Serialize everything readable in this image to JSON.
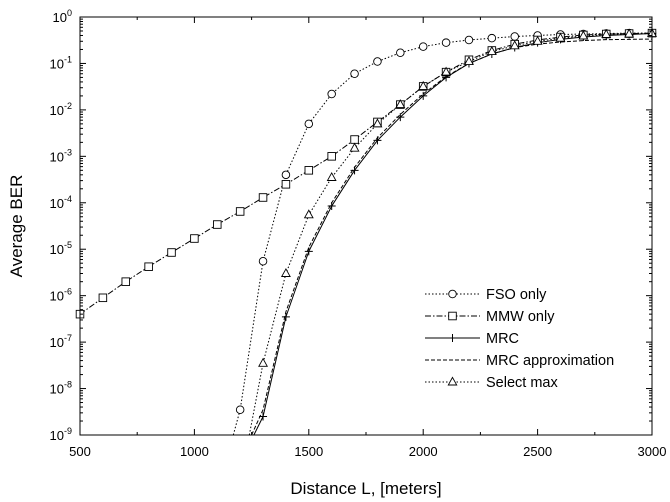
{
  "chart_data": {
    "type": "line",
    "xlabel": "Distance L, [meters]",
    "ylabel": "Average BER",
    "xlim": [
      500,
      3000
    ],
    "ylim": [
      1e-09,
      1
    ],
    "yscale": "log",
    "grid": false,
    "legend_position": "lower-right",
    "x_ticks": [
      {
        "value": 500,
        "label": "500"
      },
      {
        "value": 1000,
        "label": "1000"
      },
      {
        "value": 1500,
        "label": "1500"
      },
      {
        "value": 2000,
        "label": "2000"
      },
      {
        "value": 2500,
        "label": "2500"
      },
      {
        "value": 3000,
        "label": "3000"
      }
    ],
    "y_ticks": [
      {
        "value": 1e-09,
        "base": "10",
        "exp": "-9"
      },
      {
        "value": 1e-08,
        "base": "10",
        "exp": "-8"
      },
      {
        "value": 1e-07,
        "base": "10",
        "exp": "-7"
      },
      {
        "value": 1e-06,
        "base": "10",
        "exp": "-6"
      },
      {
        "value": 1e-05,
        "base": "10",
        "exp": "-5"
      },
      {
        "value": 0.0001,
        "base": "10",
        "exp": "-4"
      },
      {
        "value": 0.001,
        "base": "10",
        "exp": "-3"
      },
      {
        "value": 0.01,
        "base": "10",
        "exp": "-2"
      },
      {
        "value": 0.1,
        "base": "10",
        "exp": "-1"
      },
      {
        "value": 1,
        "base": "10",
        "exp": "0"
      }
    ],
    "series": [
      {
        "name": "FSO only",
        "marker": "circle",
        "dash": "1.5,2",
        "line": [
          [
            1170,
            1e-09
          ],
          [
            1200,
            3.5e-09
          ],
          [
            1300,
            5.5e-06
          ],
          [
            1400,
            0.0004
          ],
          [
            1500,
            0.005
          ],
          [
            1600,
            0.022
          ],
          [
            1700,
            0.06
          ],
          [
            1800,
            0.11
          ],
          [
            1900,
            0.17
          ],
          [
            2000,
            0.23
          ],
          [
            2100,
            0.28
          ],
          [
            2200,
            0.32
          ],
          [
            2300,
            0.35
          ],
          [
            2400,
            0.38
          ],
          [
            2500,
            0.4
          ],
          [
            2600,
            0.42
          ],
          [
            2700,
            0.43
          ],
          [
            2800,
            0.44
          ],
          [
            2900,
            0.45
          ],
          [
            3000,
            0.45
          ]
        ],
        "markers": [
          [
            1200,
            3.5e-09
          ],
          [
            1300,
            5.5e-06
          ],
          [
            1400,
            0.0004
          ],
          [
            1500,
            0.005
          ],
          [
            1600,
            0.022
          ],
          [
            1700,
            0.06
          ],
          [
            1800,
            0.11
          ],
          [
            1900,
            0.17
          ],
          [
            2000,
            0.23
          ],
          [
            2100,
            0.28
          ],
          [
            2200,
            0.32
          ],
          [
            2300,
            0.35
          ],
          [
            2400,
            0.38
          ],
          [
            2500,
            0.4
          ],
          [
            2600,
            0.42
          ],
          [
            2700,
            0.43
          ],
          [
            2800,
            0.44
          ],
          [
            2900,
            0.45
          ],
          [
            3000,
            0.45
          ]
        ]
      },
      {
        "name": "MMW only",
        "marker": "square",
        "dash": "6,2,1.5,2",
        "line": [
          [
            500,
            4e-07
          ],
          [
            600,
            9e-07
          ],
          [
            700,
            2e-06
          ],
          [
            800,
            4.2e-06
          ],
          [
            900,
            8.5e-06
          ],
          [
            1000,
            1.7e-05
          ],
          [
            1100,
            3.4e-05
          ],
          [
            1200,
            6.5e-05
          ],
          [
            1300,
            0.00013
          ],
          [
            1400,
            0.00025
          ],
          [
            1500,
            0.0005
          ],
          [
            1600,
            0.001
          ],
          [
            1700,
            0.0023
          ],
          [
            1800,
            0.0055
          ],
          [
            1900,
            0.013
          ],
          [
            2000,
            0.032
          ],
          [
            2100,
            0.065
          ],
          [
            2200,
            0.12
          ],
          [
            2300,
            0.19
          ],
          [
            2400,
            0.26
          ],
          [
            2500,
            0.32
          ],
          [
            2600,
            0.37
          ],
          [
            2700,
            0.41
          ],
          [
            2800,
            0.43
          ],
          [
            2900,
            0.44
          ],
          [
            3000,
            0.45
          ]
        ],
        "markers": [
          [
            500,
            4e-07
          ],
          [
            600,
            9e-07
          ],
          [
            700,
            2e-06
          ],
          [
            800,
            4.2e-06
          ],
          [
            900,
            8.5e-06
          ],
          [
            1000,
            1.7e-05
          ],
          [
            1100,
            3.4e-05
          ],
          [
            1200,
            6.5e-05
          ],
          [
            1300,
            0.00013
          ],
          [
            1400,
            0.00025
          ],
          [
            1500,
            0.0005
          ],
          [
            1600,
            0.001
          ],
          [
            1700,
            0.0023
          ],
          [
            1800,
            0.0055
          ],
          [
            1900,
            0.013
          ],
          [
            2000,
            0.032
          ],
          [
            2100,
            0.065
          ],
          [
            2200,
            0.12
          ],
          [
            2300,
            0.19
          ],
          [
            2400,
            0.26
          ],
          [
            2500,
            0.32
          ],
          [
            2600,
            0.37
          ],
          [
            2700,
            0.41
          ],
          [
            2800,
            0.43
          ],
          [
            2900,
            0.44
          ],
          [
            3000,
            0.45
          ]
        ]
      },
      {
        "name": "MRC",
        "marker": "plus",
        "dash": "",
        "line": [
          [
            1260,
            1e-09
          ],
          [
            1300,
            2.5e-09
          ],
          [
            1400,
            3.5e-07
          ],
          [
            1500,
            9e-06
          ],
          [
            1600,
            8.5e-05
          ],
          [
            1700,
            0.0005
          ],
          [
            1800,
            0.0022
          ],
          [
            1900,
            0.007
          ],
          [
            2000,
            0.02
          ],
          [
            2100,
            0.05
          ],
          [
            2200,
            0.1
          ],
          [
            2300,
            0.16
          ],
          [
            2400,
            0.22
          ],
          [
            2500,
            0.28
          ],
          [
            2600,
            0.33
          ],
          [
            2700,
            0.37
          ],
          [
            2800,
            0.4
          ],
          [
            2900,
            0.42
          ],
          [
            3000,
            0.44
          ]
        ],
        "markers": [
          [
            1300,
            2.5e-09
          ],
          [
            1400,
            3.5e-07
          ],
          [
            1500,
            9e-06
          ],
          [
            1600,
            8.5e-05
          ],
          [
            1700,
            0.0005
          ],
          [
            1800,
            0.0022
          ],
          [
            1900,
            0.007
          ],
          [
            2000,
            0.02
          ],
          [
            2100,
            0.05
          ],
          [
            2200,
            0.1
          ],
          [
            2300,
            0.16
          ],
          [
            2400,
            0.22
          ],
          [
            2500,
            0.28
          ],
          [
            2600,
            0.33
          ],
          [
            2700,
            0.37
          ],
          [
            2800,
            0.4
          ],
          [
            2900,
            0.42
          ],
          [
            3000,
            0.44
          ]
        ]
      },
      {
        "name": "MRC approximation",
        "marker": "none",
        "dash": "4,2",
        "line": [
          [
            1250,
            1e-09
          ],
          [
            1300,
            3.5e-09
          ],
          [
            1400,
            4.5e-07
          ],
          [
            1500,
            1.1e-05
          ],
          [
            1600,
            0.0001
          ],
          [
            1700,
            0.00058
          ],
          [
            1800,
            0.0025
          ],
          [
            1900,
            0.008
          ],
          [
            2000,
            0.022
          ],
          [
            2100,
            0.052
          ],
          [
            2200,
            0.1
          ],
          [
            2300,
            0.16
          ],
          [
            2400,
            0.22
          ],
          [
            2500,
            0.26
          ],
          [
            2600,
            0.29
          ],
          [
            2700,
            0.31
          ],
          [
            2800,
            0.325
          ],
          [
            2900,
            0.33
          ],
          [
            3000,
            0.335
          ]
        ],
        "markers": []
      },
      {
        "name": "Select max",
        "marker": "triangle",
        "dash": "1.5,2",
        "line": [
          [
            1240,
            1e-09
          ],
          [
            1300,
            3.5e-08
          ],
          [
            1400,
            3e-06
          ],
          [
            1500,
            5.5e-05
          ],
          [
            1600,
            0.00035
          ],
          [
            1700,
            0.0015
          ],
          [
            1800,
            0.005
          ],
          [
            1900,
            0.013
          ],
          [
            2000,
            0.032
          ],
          [
            2100,
            0.065
          ],
          [
            2200,
            0.11
          ],
          [
            2300,
            0.18
          ],
          [
            2400,
            0.24
          ],
          [
            2500,
            0.3
          ],
          [
            2600,
            0.35
          ],
          [
            2700,
            0.39
          ],
          [
            2800,
            0.42
          ],
          [
            2900,
            0.43
          ],
          [
            3000,
            0.44
          ]
        ],
        "markers": [
          [
            1300,
            3.5e-08
          ],
          [
            1400,
            3e-06
          ],
          [
            1500,
            5.5e-05
          ],
          [
            1600,
            0.00035
          ],
          [
            1700,
            0.0015
          ],
          [
            1800,
            0.005
          ],
          [
            1900,
            0.013
          ],
          [
            2000,
            0.032
          ],
          [
            2100,
            0.065
          ],
          [
            2200,
            0.11
          ],
          [
            2300,
            0.18
          ],
          [
            2400,
            0.24
          ],
          [
            2500,
            0.3
          ],
          [
            2600,
            0.35
          ],
          [
            2700,
            0.39
          ],
          [
            2800,
            0.42
          ],
          [
            2900,
            0.43
          ],
          [
            3000,
            0.44
          ]
        ]
      }
    ]
  }
}
